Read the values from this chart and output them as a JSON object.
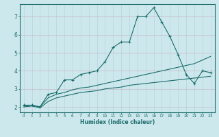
{
  "xlabel": "Humidex (Indice chaleur)",
  "background_color": "#cce8ec",
  "grid_color_h": "#c8b8c8",
  "grid_color_v": "#b8d4d8",
  "line_color": "#1a6b6b",
  "xlim": [
    -0.5,
    23.5
  ],
  "ylim": [
    1.7,
    7.7
  ],
  "xticks": [
    0,
    1,
    2,
    3,
    4,
    5,
    6,
    7,
    8,
    9,
    10,
    11,
    12,
    13,
    14,
    15,
    16,
    17,
    18,
    19,
    20,
    21,
    22,
    23
  ],
  "yticks": [
    2,
    3,
    4,
    5,
    6,
    7
  ],
  "line1_x": [
    0,
    1,
    2,
    3,
    4,
    5,
    6,
    7,
    8,
    9,
    10,
    11,
    12,
    13,
    14,
    15,
    16,
    17,
    18,
    19,
    20,
    21,
    22,
    23
  ],
  "line1_y": [
    2.1,
    2.1,
    2.0,
    2.7,
    2.8,
    3.5,
    3.5,
    3.8,
    3.9,
    4.0,
    4.5,
    5.3,
    5.6,
    5.6,
    7.0,
    7.0,
    7.5,
    6.7,
    5.9,
    4.9,
    3.8,
    3.3,
    4.0,
    3.9
  ],
  "line2_x": [
    0,
    1,
    2,
    3,
    4,
    5,
    6,
    7,
    8,
    9,
    10,
    11,
    12,
    13,
    14,
    15,
    16,
    17,
    18,
    19,
    20,
    21,
    22,
    23
  ],
  "line2_y": [
    2.05,
    2.1,
    2.0,
    2.5,
    2.7,
    2.8,
    2.95,
    3.05,
    3.1,
    3.2,
    3.3,
    3.4,
    3.5,
    3.6,
    3.7,
    3.8,
    3.9,
    4.0,
    4.1,
    4.2,
    4.3,
    4.4,
    4.6,
    4.8
  ],
  "line3_x": [
    0,
    1,
    2,
    3,
    4,
    5,
    6,
    7,
    8,
    9,
    10,
    11,
    12,
    13,
    14,
    15,
    16,
    17,
    18,
    19,
    20,
    21,
    22,
    23
  ],
  "line3_y": [
    2.0,
    2.05,
    1.95,
    2.3,
    2.5,
    2.6,
    2.7,
    2.8,
    2.85,
    2.9,
    3.0,
    3.05,
    3.1,
    3.2,
    3.25,
    3.3,
    3.35,
    3.4,
    3.45,
    3.5,
    3.55,
    3.6,
    3.65,
    3.7
  ]
}
